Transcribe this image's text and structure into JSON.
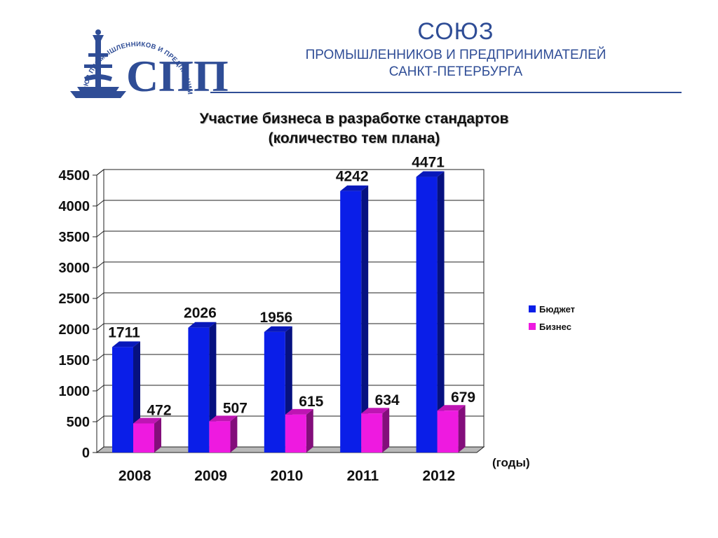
{
  "header": {
    "line1": "СОЮЗ",
    "line2": "ПРОМЫШЛЕННИКОВ И ПРЕДПРИНИМАТЕЛЕЙ",
    "line3": "САНКТ-ПЕТЕРБУРГА",
    "logo_ring_text": "СОЮЗ ПРОМЫШЛЕННИКОВ И ПРЕДПРИНИМАТЕЛЕЙ САНКТ-ПЕТЕРБУРГА",
    "logo_letters": "СПП",
    "brand_color": "#2f4d96"
  },
  "chart_data": {
    "type": "bar",
    "title": "Участие бизнеса в разработке стандартов",
    "subtitle": "(количество тем плана)",
    "categories": [
      "2008",
      "2009",
      "2010",
      "2011",
      "2012"
    ],
    "series": [
      {
        "name": "Бюджет",
        "values": [
          1711,
          2026,
          1956,
          4242,
          4471
        ],
        "color": "#0a1ee8"
      },
      {
        "name": "Бизнес",
        "values": [
          472,
          507,
          615,
          634,
          679
        ],
        "color": "#ee1ae0"
      }
    ],
    "data_labels": {
      "Бюджет": [
        "1711",
        "2026",
        "1956",
        "4242",
        "4471"
      ],
      "Бизнес": [
        "472",
        "507",
        "615",
        "634",
        "679"
      ]
    },
    "ylim": [
      0,
      4500
    ],
    "yticks": [
      "0",
      "500",
      "1000",
      "1500",
      "2000",
      "2500",
      "3000",
      "3500",
      "4000",
      "4500"
    ],
    "xlabel": "(годы)",
    "ylabel": "",
    "grid": true,
    "legend": "right",
    "style": "3d"
  }
}
